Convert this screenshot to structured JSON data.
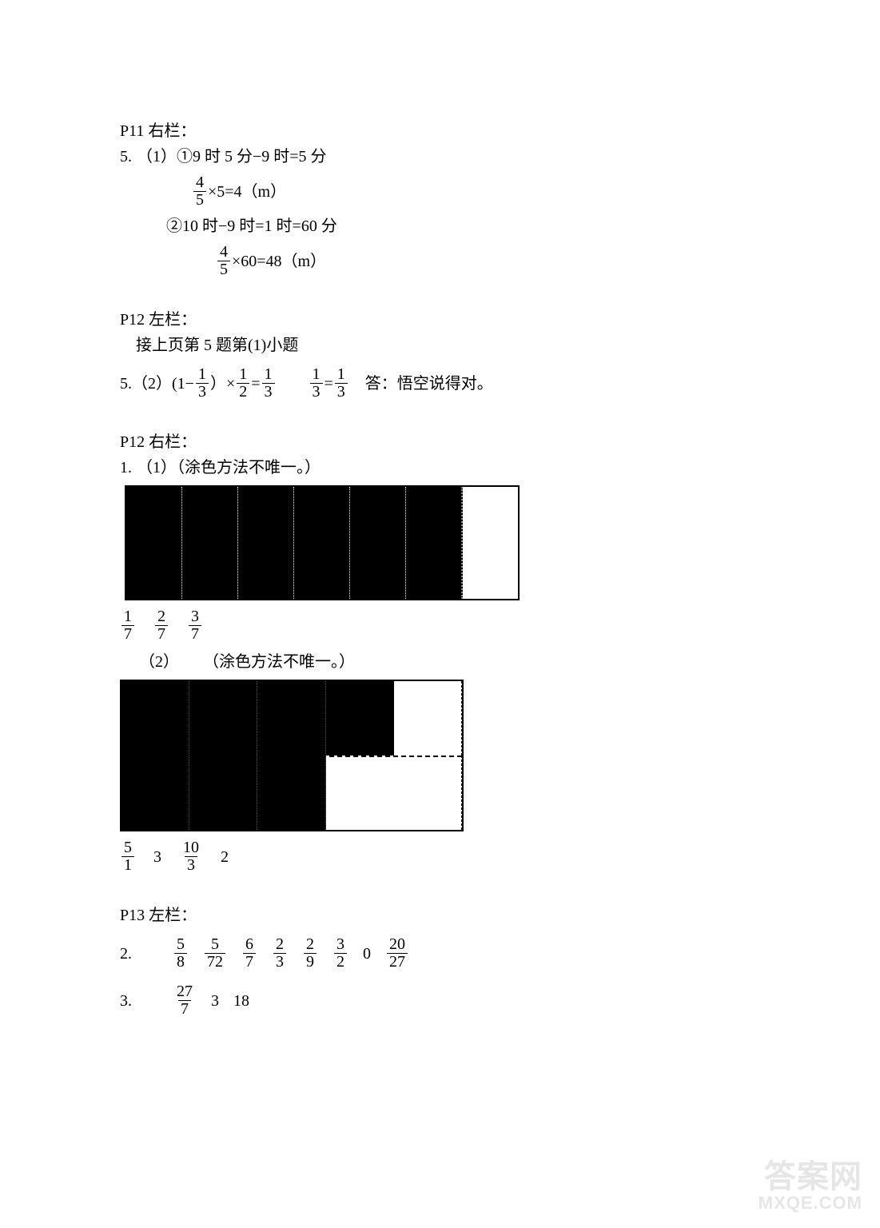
{
  "p11r": {
    "heading": "P11 右栏：",
    "q5_label": "5.",
    "line1": "（1）①9 时 5 分−9 时=5 分",
    "eq1_frac": {
      "num": "4",
      "den": "5"
    },
    "eq1_rest": "×5=4（m）",
    "line2": "②10 时−9 时=1 时=60 分",
    "eq2_frac": {
      "num": "4",
      "den": "5"
    },
    "eq2_rest": "×60=48（m）"
  },
  "p12l": {
    "heading": "P12 左栏：",
    "sub": "接上页第 5 题第(1)小题",
    "q5_label": "5.",
    "part2_prefix": "（2）(1−",
    "f_a": {
      "num": "1",
      "den": "3"
    },
    "mid1": "）×",
    "f_b": {
      "num": "1",
      "den": "2"
    },
    "eq": "=",
    "f_c": {
      "num": "1",
      "den": "3"
    },
    "f_d": {
      "num": "1",
      "den": "3"
    },
    "eq2": "=",
    "f_e": {
      "num": "1",
      "den": "3"
    },
    "ans": "答：悟空说得对。"
  },
  "p12r": {
    "heading": "P12 右栏：",
    "q1_label": "1.",
    "part1_note": "（1）（涂色方法不唯一。）",
    "grid1": {
      "cols": 7,
      "filled": 6
    },
    "fracs1": [
      {
        "num": "1",
        "den": "7"
      },
      {
        "num": "2",
        "den": "7"
      },
      {
        "num": "3",
        "den": "7"
      }
    ],
    "part2_label": "（2）",
    "part2_note": "（涂色方法不唯一。）",
    "grid2": {
      "cols": 5,
      "rows": 2,
      "cells": [
        1,
        1,
        1,
        1,
        0,
        1,
        1,
        1,
        0,
        0
      ]
    },
    "fracs2_items": [
      {
        "type": "frac",
        "num": "5",
        "den": "1"
      },
      {
        "type": "int",
        "val": "3"
      },
      {
        "type": "frac",
        "num": "10",
        "den": "3"
      },
      {
        "type": "int",
        "val": "2"
      }
    ]
  },
  "p13l": {
    "heading": "P13 左栏：",
    "q2_label": "2.",
    "q2_items": [
      {
        "type": "frac",
        "num": "5",
        "den": "8"
      },
      {
        "type": "frac",
        "num": "5",
        "den": "72"
      },
      {
        "type": "frac",
        "num": "6",
        "den": "7"
      },
      {
        "type": "frac",
        "num": "2",
        "den": "3"
      },
      {
        "type": "frac",
        "num": "2",
        "den": "9"
      },
      {
        "type": "frac",
        "num": "3",
        "den": "2"
      },
      {
        "type": "int",
        "val": "0"
      },
      {
        "type": "frac",
        "num": "20",
        "den": "27"
      }
    ],
    "q3_label": "3.",
    "q3_items": [
      {
        "type": "frac",
        "num": "27",
        "den": "7"
      },
      {
        "type": "int",
        "val": "3"
      },
      {
        "type": "int",
        "val": "18"
      }
    ]
  },
  "watermark": {
    "line1": "答案网",
    "line2": "MXQE.COM"
  },
  "colors": {
    "text": "#000000",
    "bg": "#ffffff",
    "wm": "#e6e6e6"
  }
}
